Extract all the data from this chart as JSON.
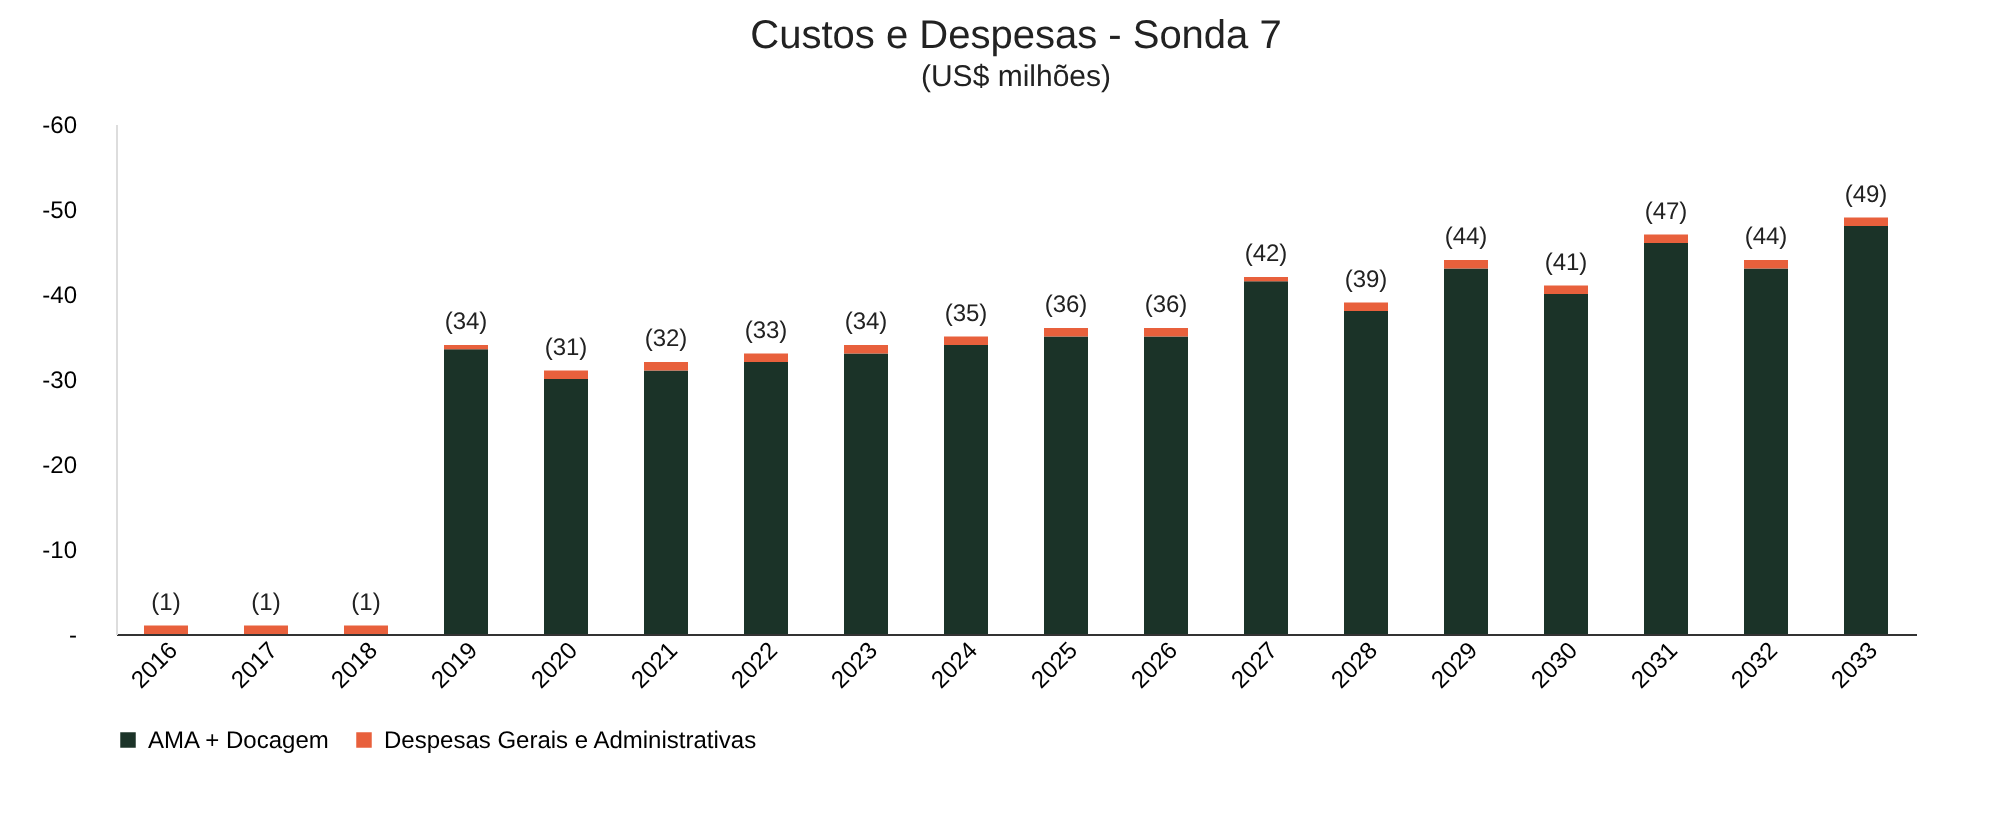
{
  "chart_data": {
    "type": "bar",
    "title": "Custos e Despesas - Sonda 7",
    "subtitle": "(US$ milhões)",
    "categories": [
      "2016",
      "2017",
      "2018",
      "2019",
      "2020",
      "2021",
      "2022",
      "2023",
      "2024",
      "2025",
      "2026",
      "2027",
      "2028",
      "2029",
      "2030",
      "2031",
      "2032",
      "2033"
    ],
    "series": [
      {
        "name": "AMA + Docagem",
        "color": "#1b3328",
        "values": [
          0,
          0,
          0,
          -33.5,
          -30,
          -31,
          -32,
          -33,
          -34,
          -35,
          -35,
          -41.5,
          -38,
          -43,
          -40,
          -46,
          -43,
          -48
        ]
      },
      {
        "name": "Despesas Gerais e Administrativas",
        "color": "#e8603c",
        "values": [
          -1,
          -1,
          -1,
          -0.5,
          -1,
          -1,
          -1,
          -1,
          -1,
          -1,
          -1,
          -0.5,
          -1,
          -1,
          -1,
          -1,
          -1,
          -1
        ]
      }
    ],
    "stacked": true,
    "totals": [
      "(1)",
      "(1)",
      "(1)",
      "(34)",
      "(31)",
      "(32)",
      "(33)",
      "(34)",
      "(35)",
      "(36)",
      "(36)",
      "(42)",
      "(39)",
      "(44)",
      "(41)",
      "(47)",
      "(44)",
      "(49)"
    ],
    "ylim": [
      0,
      -60
    ],
    "yticks": [
      {
        "value": 0,
        "label": "-"
      },
      -10,
      -20,
      -30,
      -40,
      -50,
      -60
    ],
    "grid": false,
    "legend": "bottom"
  }
}
